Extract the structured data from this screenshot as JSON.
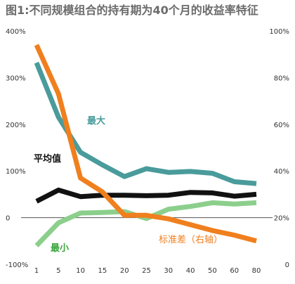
{
  "chart_data": {
    "type": "line",
    "title": "图1:不同规模组合的持有期为40个月的收益率特征",
    "categories": [
      "1",
      "5",
      "10",
      "15",
      "20",
      "25",
      "30",
      "40",
      "50",
      "60",
      "80"
    ],
    "y_left": {
      "ylim": [
        -100,
        400
      ],
      "ticks": [
        -100,
        0,
        100,
        200,
        300,
        400
      ],
      "tick_labels": [
        "-100%",
        "0",
        "100%",
        "200%",
        "300%",
        "400%"
      ]
    },
    "y_right": {
      "ylim": [
        0,
        100
      ],
      "ticks": [
        0,
        20,
        40,
        60,
        80,
        100
      ],
      "tick_labels": [
        "0",
        "20%",
        "40%",
        "60%",
        "80%",
        "100%"
      ]
    },
    "series": [
      {
        "name": "最大",
        "axis": "left",
        "color": "#4a9b9b",
        "values": [
          332,
          215,
          140,
          113,
          88,
          105,
          97,
          99,
          95,
          77,
          73
        ]
      },
      {
        "name": "平均值",
        "axis": "left",
        "color": "#111111",
        "values": [
          35,
          59,
          45,
          48,
          48,
          47,
          48,
          54,
          53,
          46,
          50
        ]
      },
      {
        "name": "最小",
        "axis": "left",
        "color": "#8ccf8c",
        "values": [
          -60,
          -11,
          10,
          11,
          13,
          -2,
          18,
          24,
          32,
          29,
          32
        ]
      },
      {
        "name": "标准差（右轴）",
        "axis": "right",
        "color": "#f07f1e",
        "values": [
          94,
          73,
          37,
          31,
          21,
          21,
          19.5,
          17,
          14.5,
          12.5,
          10
        ]
      }
    ],
    "grid": false,
    "legend": "inline labels"
  }
}
